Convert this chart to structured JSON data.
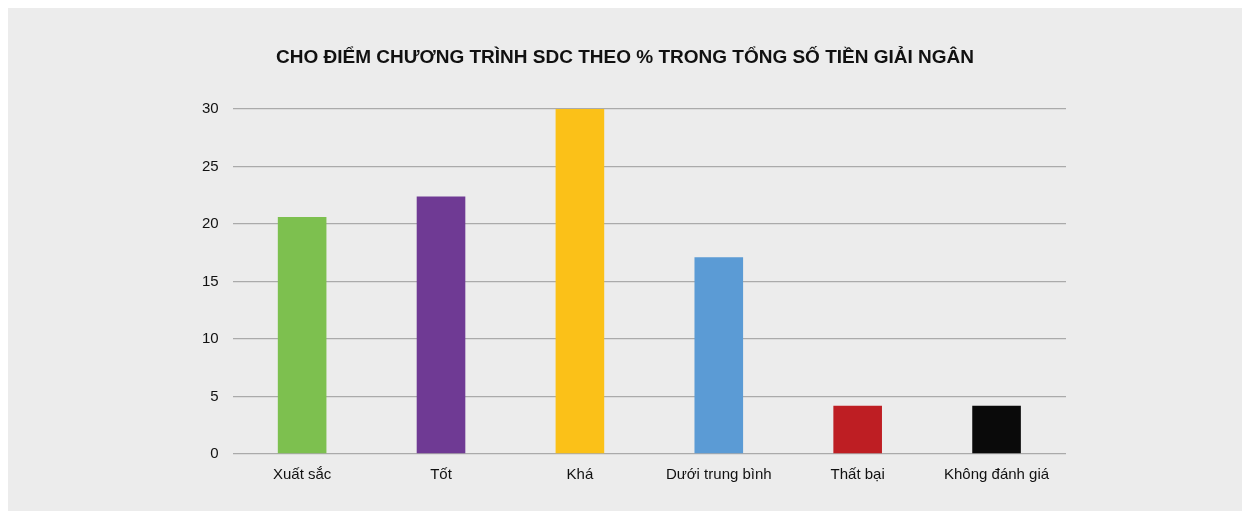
{
  "chart_data": {
    "type": "bar",
    "title": "CHO ĐIỂM CHƯƠNG TRÌNH SDC THEO % TRONG TỔNG SỐ TIỀN GIẢI NGÂN",
    "categories": [
      "Xuất sắc",
      "Tốt",
      "Khá",
      "Dưới trung bình",
      "Thất bại",
      "Không đánh giá"
    ],
    "values": [
      20.6,
      22.4,
      30,
      17.1,
      4.2,
      4.2
    ],
    "colors": [
      "#7dc04f",
      "#6f3a94",
      "#fbc118",
      "#5b9bd5",
      "#be1e23",
      "#0a0a0a"
    ],
    "ylim": [
      0,
      30
    ],
    "yticks": [
      0,
      5,
      10,
      15,
      20,
      25,
      30
    ],
    "grid": "y",
    "legend": false
  }
}
